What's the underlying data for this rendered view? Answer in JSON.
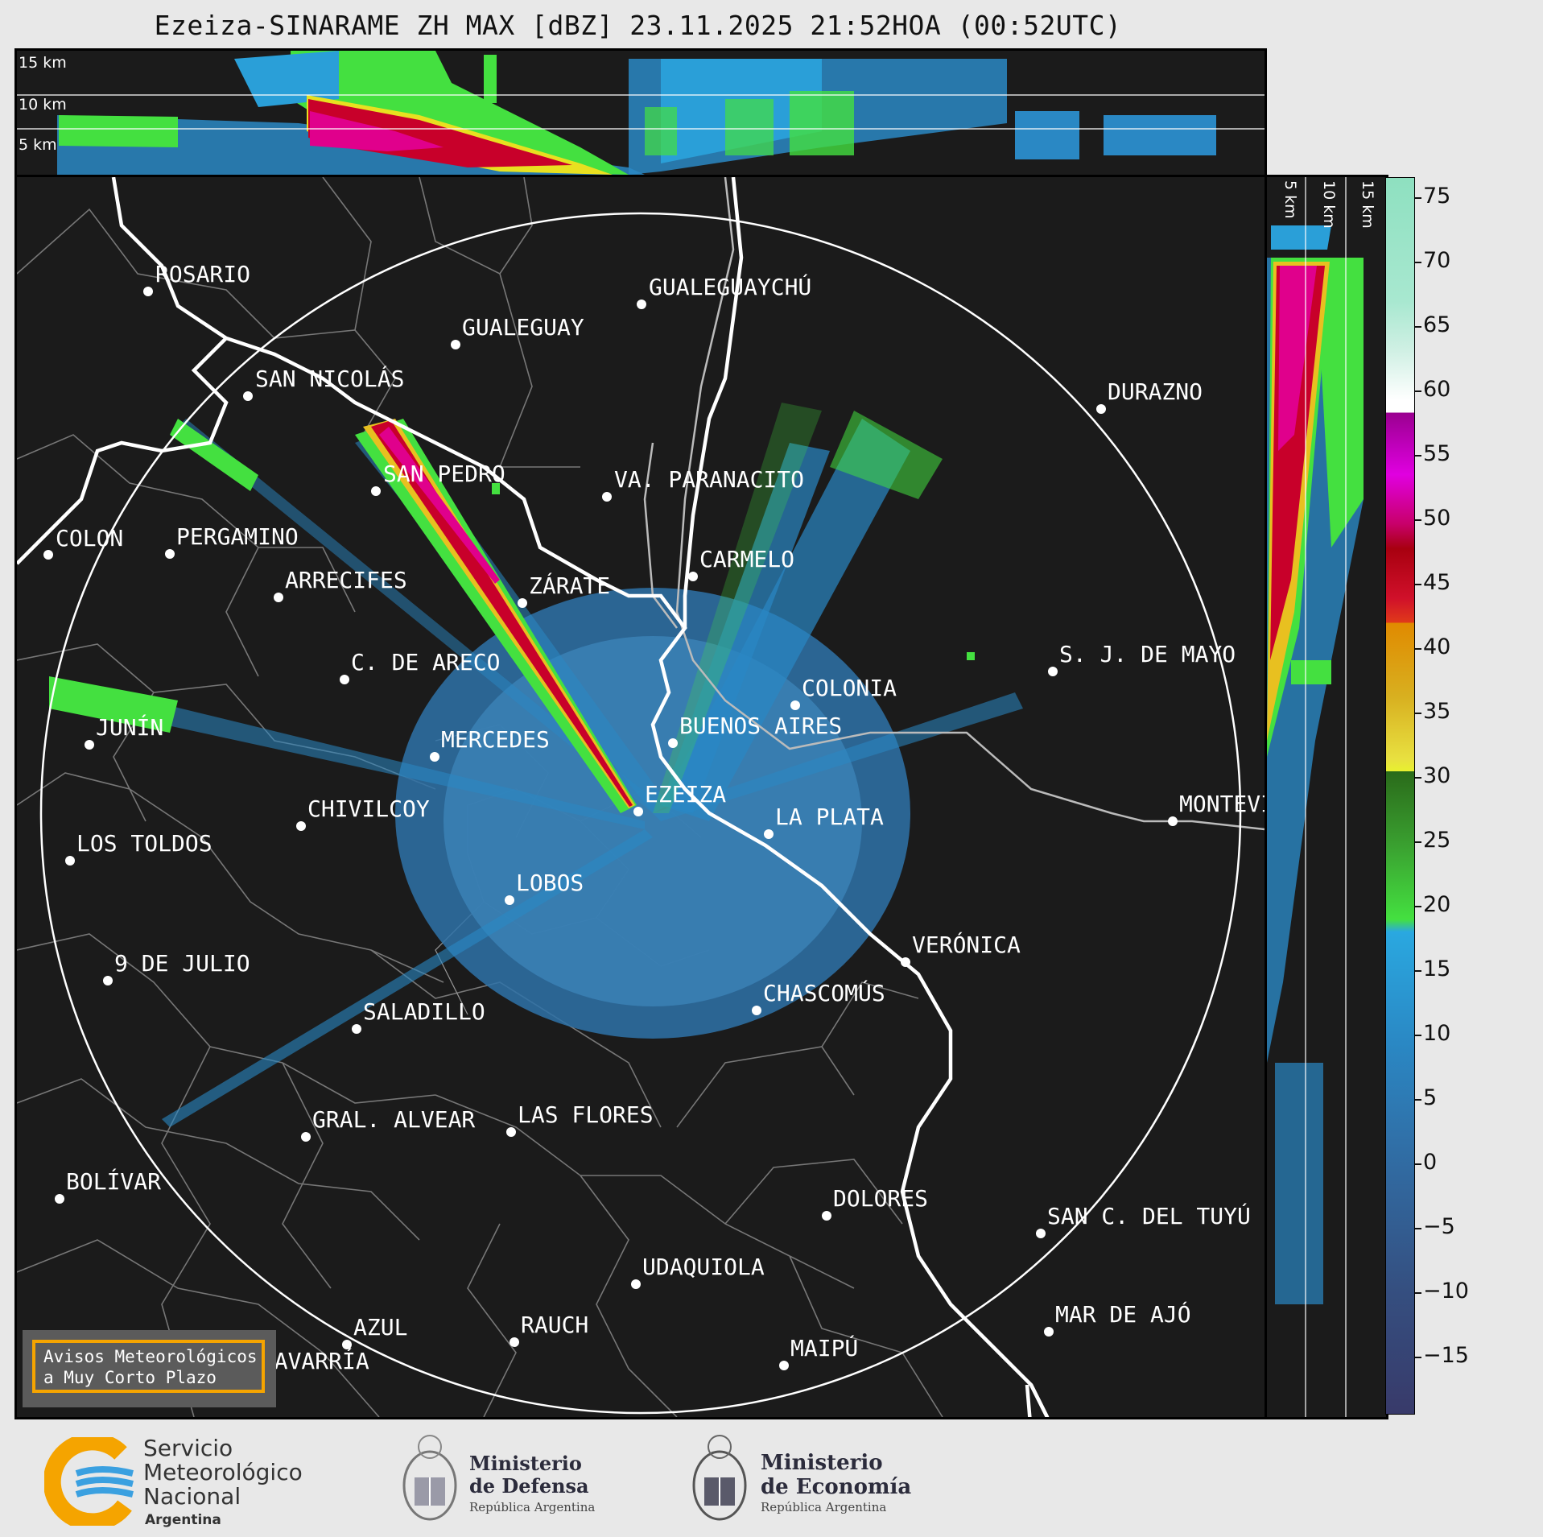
{
  "title": "Ezeiza-SINARAME ZH MAX [dBZ] 23.11.2025 21:52HOA (00:52UTC)",
  "altitude_labels": [
    "15 km",
    "10 km",
    "5 km"
  ],
  "colorbar": {
    "ticks": [
      "75",
      "70",
      "65",
      "60",
      "55",
      "50",
      "45",
      "40",
      "35",
      "30",
      "25",
      "20",
      "15",
      "10",
      "5",
      "0",
      "−5",
      "−10",
      "−15"
    ]
  },
  "cities": [
    {
      "name": "ROSARIO"
    },
    {
      "name": "GUALEGUAYCHÚ"
    },
    {
      "name": "GUALEGUAY"
    },
    {
      "name": "SAN NICOLÁS"
    },
    {
      "name": "DURAZNO"
    },
    {
      "name": "SAN PEDRO"
    },
    {
      "name": "VA. PARANACITO"
    },
    {
      "name": "COLON"
    },
    {
      "name": "PERGAMINO"
    },
    {
      "name": "CARMELO"
    },
    {
      "name": "ARRECIFES"
    },
    {
      "name": "ZÁRATE"
    },
    {
      "name": "S. J. DE MAYO"
    },
    {
      "name": "C. DE ARECO"
    },
    {
      "name": "COLONIA"
    },
    {
      "name": "JUNÍN"
    },
    {
      "name": "BUENOS AIRES"
    },
    {
      "name": "MERCEDES"
    },
    {
      "name": "EZEIZA"
    },
    {
      "name": "MONTEVIDEO"
    },
    {
      "name": "CHIVILCOY"
    },
    {
      "name": "LA PLATA"
    },
    {
      "name": "LOS TOLDOS"
    },
    {
      "name": "LOBOS"
    },
    {
      "name": "VERÓNICA"
    },
    {
      "name": "9 DE JULIO"
    },
    {
      "name": "CHASCOMÚS"
    },
    {
      "name": "SALADILLO"
    },
    {
      "name": "GRAL. ALVEAR"
    },
    {
      "name": "LAS FLORES"
    },
    {
      "name": "BOLÍVAR"
    },
    {
      "name": "DOLORES"
    },
    {
      "name": "SAN C. DEL TUYÚ"
    },
    {
      "name": "UDAQUIOLA"
    },
    {
      "name": "MAR DE AJÓ"
    },
    {
      "name": "AZUL"
    },
    {
      "name": "RAUCH"
    },
    {
      "name": "OLAVARRÍA"
    },
    {
      "name": "MAIPÚ"
    }
  ],
  "avisos": "Avisos Meteorológicos\na Muy Corto Plazo",
  "footer": {
    "smn": [
      "Servicio",
      "Meteorológico",
      "Nacional"
    ],
    "smn_country": "Argentina",
    "defensa": [
      "Ministerio",
      "de Defensa"
    ],
    "defensa_sub": "República Argentina",
    "economia": [
      "Ministerio",
      "de Economía"
    ],
    "economia_sub": "República Argentina"
  },
  "colors": {
    "background": "#1b1b1b",
    "range_ring": "#ffffff",
    "echo_weak": "#2a88c4",
    "echo_green": "#44e040",
    "echo_red": "#c8002a",
    "echo_magenta": "#e0008c",
    "avisos_border": "#f5a400"
  }
}
